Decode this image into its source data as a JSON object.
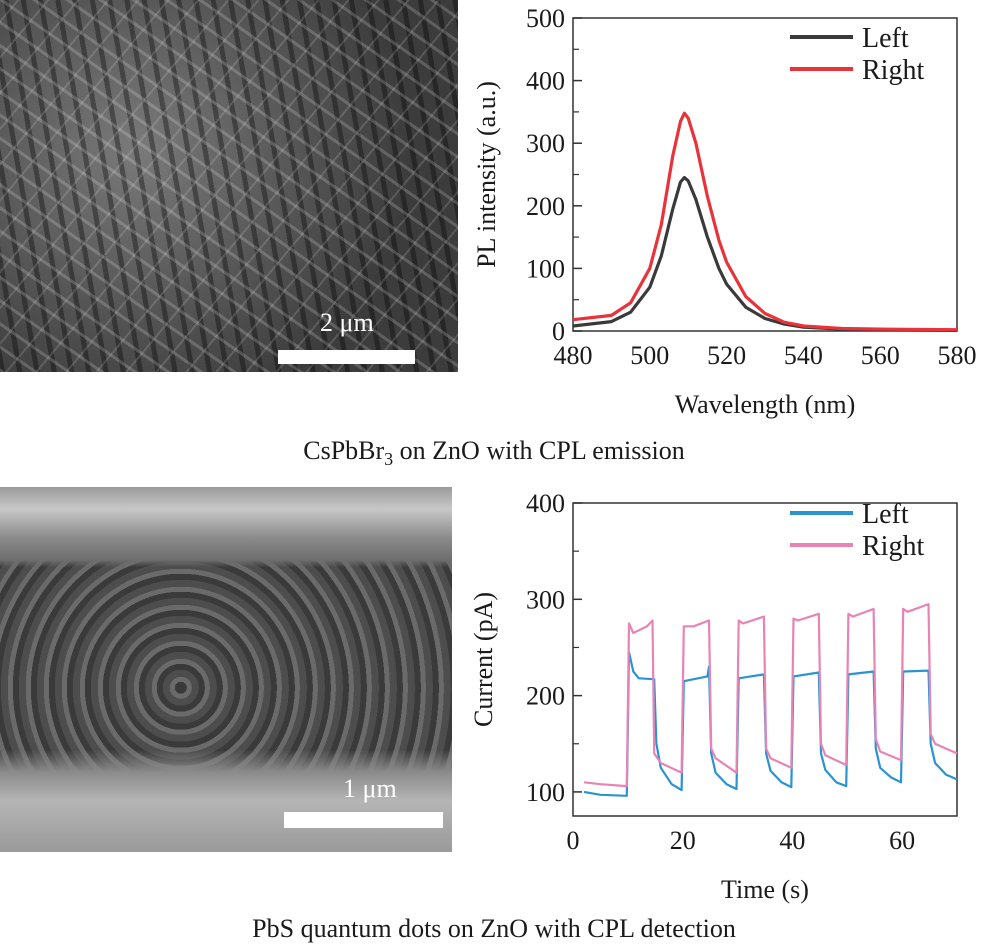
{
  "panels": {
    "top_caption": {
      "text": "CsPbBr",
      "sub": "3",
      "rest": " on ZnO with CPL emission"
    },
    "bottom_caption": "PbS quantum dots on ZnO with CPL detection",
    "sem_top_scale": "2 μm",
    "sem_bottom_scale": "1 μm"
  },
  "chart_data": [
    {
      "type": "line",
      "xlabel": "Wavelength (nm)",
      "ylabel": "PL intensity (a.u.)",
      "xlim": [
        480,
        580
      ],
      "ylim": [
        0,
        500
      ],
      "xticks": [
        480,
        500,
        520,
        540,
        560,
        580
      ],
      "yticks": [
        0,
        100,
        200,
        300,
        400,
        500
      ],
      "legend_position": "top-right",
      "series": [
        {
          "name": "Left",
          "color": "#3a3a3a",
          "points": [
            [
              480,
              8
            ],
            [
              490,
              15
            ],
            [
              495,
              30
            ],
            [
              500,
              70
            ],
            [
              503,
              120
            ],
            [
              506,
              195
            ],
            [
              508,
              238
            ],
            [
              509,
              245
            ],
            [
              510,
              240
            ],
            [
              512,
              210
            ],
            [
              515,
              150
            ],
            [
              518,
              100
            ],
            [
              520,
              75
            ],
            [
              525,
              38
            ],
            [
              530,
              20
            ],
            [
              535,
              11
            ],
            [
              540,
              6
            ],
            [
              550,
              3
            ],
            [
              560,
              2
            ],
            [
              580,
              1
            ]
          ]
        },
        {
          "name": "Right",
          "color": "#e8333a",
          "points": [
            [
              480,
              18
            ],
            [
              490,
              25
            ],
            [
              495,
              45
            ],
            [
              500,
              100
            ],
            [
              503,
              170
            ],
            [
              506,
              280
            ],
            [
              508,
              335
            ],
            [
              509,
              348
            ],
            [
              510,
              340
            ],
            [
              512,
              300
            ],
            [
              515,
              215
            ],
            [
              518,
              145
            ],
            [
              520,
              110
            ],
            [
              525,
              55
            ],
            [
              530,
              28
            ],
            [
              535,
              14
            ],
            [
              540,
              8
            ],
            [
              550,
              4
            ],
            [
              560,
              3
            ],
            [
              580,
              2
            ]
          ]
        }
      ]
    },
    {
      "type": "line",
      "xlabel": "Time (s)",
      "ylabel": "Current (pA)",
      "xlim": [
        0,
        70
      ],
      "ylim": [
        75,
        400
      ],
      "xticks": [
        0,
        20,
        40,
        60
      ],
      "yticks": [
        100,
        200,
        300,
        400
      ],
      "legend_position": "top-right",
      "series": [
        {
          "name": "Left",
          "color": "#2b93cf",
          "points": [
            [
              2,
              100
            ],
            [
              5,
              97
            ],
            [
              9.8,
              96
            ],
            [
              10.2,
              245
            ],
            [
              11,
              225
            ],
            [
              12,
              218
            ],
            [
              14.8,
              217
            ],
            [
              15.2,
              150
            ],
            [
              16,
              125
            ],
            [
              18,
              108
            ],
            [
              19.8,
              102
            ],
            [
              20.2,
              215
            ],
            [
              22,
              217
            ],
            [
              24.5,
              220
            ],
            [
              24.8,
              230
            ],
            [
              25.2,
              140
            ],
            [
              26,
              120
            ],
            [
              28,
              108
            ],
            [
              29.8,
              103
            ],
            [
              30.2,
              218
            ],
            [
              34.8,
              222
            ],
            [
              35.2,
              140
            ],
            [
              36,
              122
            ],
            [
              38,
              110
            ],
            [
              39.8,
              105
            ],
            [
              40.2,
              220
            ],
            [
              44.8,
              224
            ],
            [
              45.2,
              140
            ],
            [
              46,
              123
            ],
            [
              48,
              110
            ],
            [
              49.8,
              106
            ],
            [
              50.2,
              222
            ],
            [
              54.8,
              225
            ],
            [
              55.2,
              145
            ],
            [
              56,
              125
            ],
            [
              58,
              115
            ],
            [
              59.8,
              110
            ],
            [
              60.2,
              225
            ],
            [
              64.8,
              226
            ],
            [
              65.2,
              150
            ],
            [
              66,
              130
            ],
            [
              68,
              118
            ],
            [
              70,
              113
            ]
          ]
        },
        {
          "name": "Right",
          "color": "#e784b4",
          "points": [
            [
              2,
              110
            ],
            [
              5,
              108
            ],
            [
              9.8,
              106
            ],
            [
              10.2,
              275
            ],
            [
              11,
              265
            ],
            [
              13.5,
              272
            ],
            [
              14.5,
              278
            ],
            [
              14.8,
              140
            ],
            [
              16,
              130
            ],
            [
              19.8,
              120
            ],
            [
              20.2,
              272
            ],
            [
              22,
              272
            ],
            [
              24.8,
              278
            ],
            [
              25.2,
              145
            ],
            [
              26,
              135
            ],
            [
              29.8,
              120
            ],
            [
              30.2,
              278
            ],
            [
              31,
              275
            ],
            [
              34.8,
              282
            ],
            [
              35.2,
              145
            ],
            [
              36,
              135
            ],
            [
              39.8,
              125
            ],
            [
              40.2,
              280
            ],
            [
              41,
              278
            ],
            [
              44.8,
              285
            ],
            [
              45.2,
              150
            ],
            [
              46,
              138
            ],
            [
              49.8,
              128
            ],
            [
              50.2,
              285
            ],
            [
              51,
              282
            ],
            [
              54.8,
              290
            ],
            [
              55.2,
              155
            ],
            [
              56,
              142
            ],
            [
              59.8,
              133
            ],
            [
              60.2,
              290
            ],
            [
              61,
              287
            ],
            [
              64.8,
              295
            ],
            [
              65.2,
              160
            ],
            [
              66,
              150
            ],
            [
              68,
              145
            ],
            [
              70,
              140
            ]
          ]
        }
      ]
    }
  ]
}
